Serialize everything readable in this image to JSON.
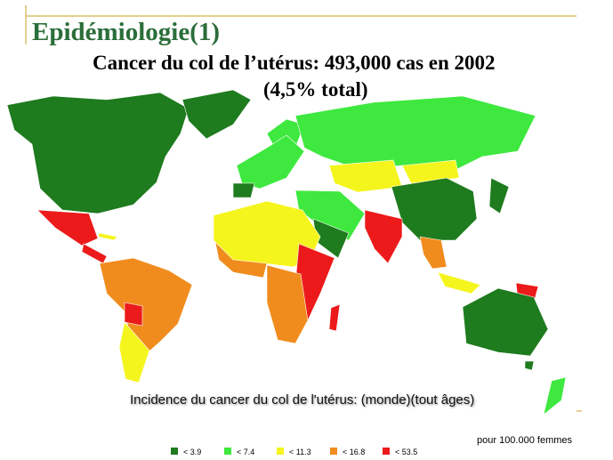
{
  "header": {
    "title": "Epidémiologie(1)",
    "subtitle_lines": [
      "Cancer du col de l’utérus: 493,000 cas en 2002",
      "(4,5% total)"
    ]
  },
  "map": {
    "caption": "Incidence du cancer du col de l'utérus:  (monde)(tout âges)",
    "unit_note": "pour 100.000 femmes"
  },
  "legend": {
    "items": [
      {
        "color": "#1e7b1e",
        "label": "<  3.9"
      },
      {
        "color": "#3ee83e",
        "label": "<  7.4"
      },
      {
        "color": "#f5f51e",
        "label": "<  11.3"
      },
      {
        "color": "#f08c1e",
        "label": "<  16.8"
      },
      {
        "color": "#ec1a1a",
        "label": "<  53.5"
      }
    ]
  }
}
